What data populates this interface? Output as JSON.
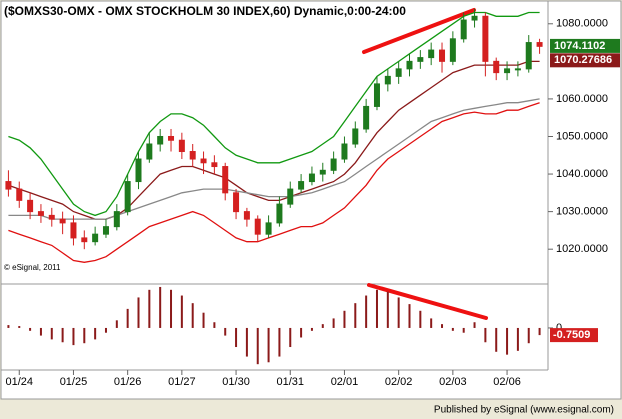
{
  "chart_data": [
    {
      "type": "candlestick",
      "title": "($OMXS30-OMX - OMX STOCKHOLM 30 INDEX,60) Dynamic,0:00-24:00",
      "credit": "© eSignal, 2011",
      "categories": [
        null,
        null,
        null,
        null,
        null,
        null,
        null,
        null,
        null,
        null,
        null,
        null,
        null,
        null,
        null,
        null,
        null,
        null,
        null,
        null,
        null,
        null,
        null,
        null,
        null,
        null,
        null,
        null,
        null,
        null,
        null,
        null,
        null,
        null,
        null,
        null,
        null,
        null,
        null,
        null,
        null,
        null,
        null,
        null,
        null,
        null,
        null,
        null,
        null,
        null
      ],
      "open": [
        1038,
        1036,
        1033,
        1030,
        1029,
        1028,
        1027,
        1023,
        1022,
        1024,
        1026,
        1030,
        1038,
        1044,
        1048,
        1050,
        1049,
        1046,
        1044,
        1043,
        1042,
        1035,
        1030,
        1028,
        1024,
        1027,
        1032,
        1036,
        1038,
        1040,
        1041,
        1044,
        1048,
        1052,
        1058,
        1064,
        1066,
        1068,
        1070,
        1071,
        1073,
        1070,
        1076,
        1081,
        1082,
        1070,
        1067,
        1068,
        1068,
        1075
      ],
      "high": [
        1041,
        1038,
        1035,
        1032,
        1031,
        1030,
        1029,
        1025,
        1026,
        1028,
        1032,
        1040,
        1046,
        1051,
        1052,
        1052,
        1051,
        1048,
        1046,
        1045,
        1043,
        1036,
        1031,
        1029,
        1029,
        1034,
        1038,
        1040,
        1042,
        1043,
        1046,
        1050,
        1054,
        1060,
        1066,
        1068,
        1070,
        1072,
        1073,
        1075,
        1075,
        1078,
        1083,
        1084,
        1083,
        1071,
        1070,
        1070,
        1077,
        1076
      ],
      "low": [
        1034,
        1031,
        1028,
        1027,
        1026,
        1024,
        1021,
        1020,
        1021,
        1023,
        1025,
        1029,
        1036,
        1043,
        1046,
        1046,
        1044,
        1042,
        1040,
        1040,
        1033,
        1028,
        1026,
        1022,
        1023,
        1026,
        1031,
        1035,
        1037,
        1038,
        1040,
        1043,
        1047,
        1051,
        1057,
        1062,
        1064,
        1066,
        1068,
        1069,
        1067,
        1069,
        1075,
        1079,
        1066,
        1065,
        1065,
        1066,
        1067,
        1072
      ],
      "close": [
        1036,
        1033,
        1030,
        1029,
        1028,
        1027,
        1023,
        1022,
        1024,
        1026,
        1030,
        1038,
        1044,
        1048,
        1050,
        1049,
        1046,
        1044,
        1043,
        1042,
        1035,
        1030,
        1028,
        1024,
        1027,
        1032,
        1036,
        1038,
        1040,
        1041,
        1044,
        1048,
        1052,
        1058,
        1064,
        1066,
        1068,
        1070,
        1071,
        1073,
        1070,
        1076,
        1081,
        1082,
        1070,
        1067,
        1068,
        1068,
        1075,
        1074
      ],
      "up_color": "#1e7a1e",
      "down_color": "#d42020",
      "series": [
        {
          "name": "upper",
          "color": "#119911",
          "values": [
            1050,
            1049,
            1047,
            1044,
            1040,
            1036,
            1032,
            1030,
            1029,
            1030,
            1034,
            1040,
            1046,
            1051,
            1054,
            1056,
            1056,
            1055,
            1053,
            1050,
            1047,
            1045,
            1044,
            1043,
            1043,
            1043,
            1044,
            1045,
            1046,
            1048,
            1050,
            1054,
            1058,
            1062,
            1066,
            1068,
            1070,
            1072,
            1074,
            1076,
            1078,
            1080,
            1082,
            1083,
            1083,
            1082,
            1082,
            1082,
            1083,
            1083
          ]
        },
        {
          "name": "middle",
          "color": "#8b1a1a",
          "values": [
            1037,
            1036,
            1035,
            1034,
            1033,
            1032,
            1030,
            1029,
            1028,
            1028,
            1029,
            1031,
            1034,
            1037,
            1040,
            1041,
            1042,
            1042,
            1041,
            1040,
            1039,
            1037,
            1035,
            1034,
            1033,
            1033,
            1034,
            1035,
            1036,
            1037,
            1038,
            1040,
            1043,
            1047,
            1051,
            1054,
            1057,
            1059,
            1061,
            1063,
            1065,
            1067,
            1068,
            1069,
            1069,
            1069,
            1069,
            1069,
            1070,
            1070
          ]
        },
        {
          "name": "lower",
          "color": "#e01010",
          "values": [
            1025,
            1024,
            1023,
            1022,
            1021,
            1019,
            1017,
            1016.5,
            1017,
            1018,
            1020,
            1022,
            1024,
            1026,
            1027,
            1028,
            1029,
            1030,
            1029,
            1027,
            1025,
            1023,
            1022,
            1022,
            1023,
            1024,
            1025,
            1026,
            1026,
            1027,
            1029,
            1031,
            1034,
            1037,
            1041,
            1044,
            1046,
            1048,
            1050,
            1052,
            1054,
            1055,
            1056,
            1056.5,
            1056,
            1056,
            1057,
            1057,
            1058,
            1059
          ]
        },
        {
          "name": "average",
          "color": "#888888",
          "values": [
            1029,
            1029,
            1029,
            1029,
            1028,
            1028,
            1028,
            1028,
            1028,
            1028,
            1029,
            1030,
            1031,
            1032,
            1033,
            1034,
            1035,
            1035.5,
            1036,
            1036,
            1036,
            1035.5,
            1035,
            1034.5,
            1034,
            1034,
            1034,
            1034.5,
            1035,
            1036,
            1037,
            1038,
            1040,
            1042,
            1044,
            1046,
            1048,
            1050,
            1052,
            1054,
            1055,
            1056,
            1057,
            1057.5,
            1058,
            1058.5,
            1059,
            1059,
            1059.5,
            1060
          ]
        }
      ],
      "price_markers": [
        {
          "value": 1074.1102,
          "color": "#1e7a1e"
        },
        {
          "value": 1070.27686,
          "color": "#8b1a1a"
        }
      ],
      "ylim": [
        1011,
        1085
      ],
      "yticks": [
        {
          "value": 1020,
          "label": "1020.0000"
        },
        {
          "value": 1030,
          "label": "1030.0000"
        },
        {
          "value": 1040,
          "label": "1040.0000"
        },
        {
          "value": 1050,
          "label": "1050.0000"
        },
        {
          "value": 1060,
          "label": "1060.0000"
        },
        {
          "value": 1080,
          "label": "1080.0000"
        }
      ],
      "xticks": [
        {
          "value": 1,
          "label": "01/24"
        },
        {
          "value": 6,
          "label": "01/25"
        },
        {
          "value": 11,
          "label": "01/26"
        },
        {
          "value": 16,
          "label": "01/27"
        },
        {
          "value": 21,
          "label": "01/30"
        },
        {
          "value": 26,
          "label": "01/31"
        },
        {
          "value": 31,
          "label": "02/01"
        },
        {
          "value": 36,
          "label": "02/02"
        },
        {
          "value": 41,
          "label": "02/03"
        },
        {
          "value": 46,
          "label": "02/06"
        }
      ]
    },
    {
      "type": "bar",
      "color": "#8b1a1a",
      "values": [
        0.3,
        0.2,
        -0.3,
        -0.8,
        -1.2,
        -1.5,
        -1.8,
        -1.6,
        -1.2,
        -0.5,
        0.8,
        2,
        3.2,
        4,
        4.3,
        4,
        3.4,
        2.6,
        1.6,
        0.6,
        -0.8,
        -2,
        -3,
        -3.8,
        -3.6,
        -3,
        -2,
        -1,
        -0.3,
        0.4,
        1,
        1.8,
        2.6,
        3.4,
        4,
        3.8,
        3.2,
        2.5,
        1.8,
        1,
        0.4,
        -0.3,
        -0.5,
        0.6,
        -1.5,
        -2.5,
        -2.8,
        -2.4,
        -1.6,
        -0.75
      ],
      "marker": {
        "value": -0.7509,
        "color": "#d42020"
      },
      "ylim": [
        -4.2,
        4.4
      ],
      "yticks": [
        0
      ]
    }
  ],
  "footer": "Published by eSignal (www.esignal.com)"
}
